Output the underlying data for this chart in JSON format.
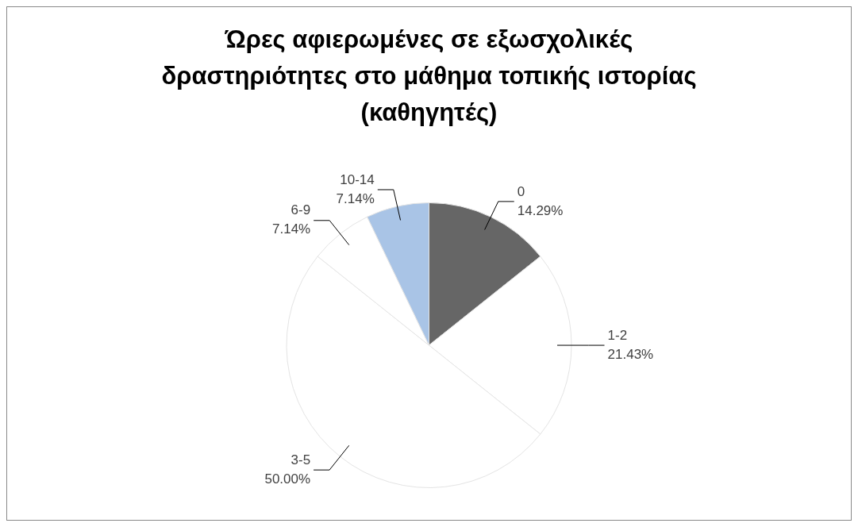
{
  "chart_data": {
    "type": "pie",
    "title": "Ώρες αφιερωμένες σε εξωσχολικές δραστηριότητες στο μάθημα τοπικής ιστορίας (καθηγητές)",
    "categories": [
      "0",
      "1-2",
      "3-5",
      "6-9",
      "10-14"
    ],
    "values": [
      14.29,
      21.43,
      50.0,
      7.14,
      7.14
    ],
    "colors": [
      "#666666",
      "#ffffff",
      "#ffffff",
      "#ffffff",
      "#a9c4e6"
    ],
    "value_labels": [
      "14.29%",
      "21.43%",
      "50.00%",
      "7.14%",
      "7.14%"
    ],
    "legend": false
  }
}
